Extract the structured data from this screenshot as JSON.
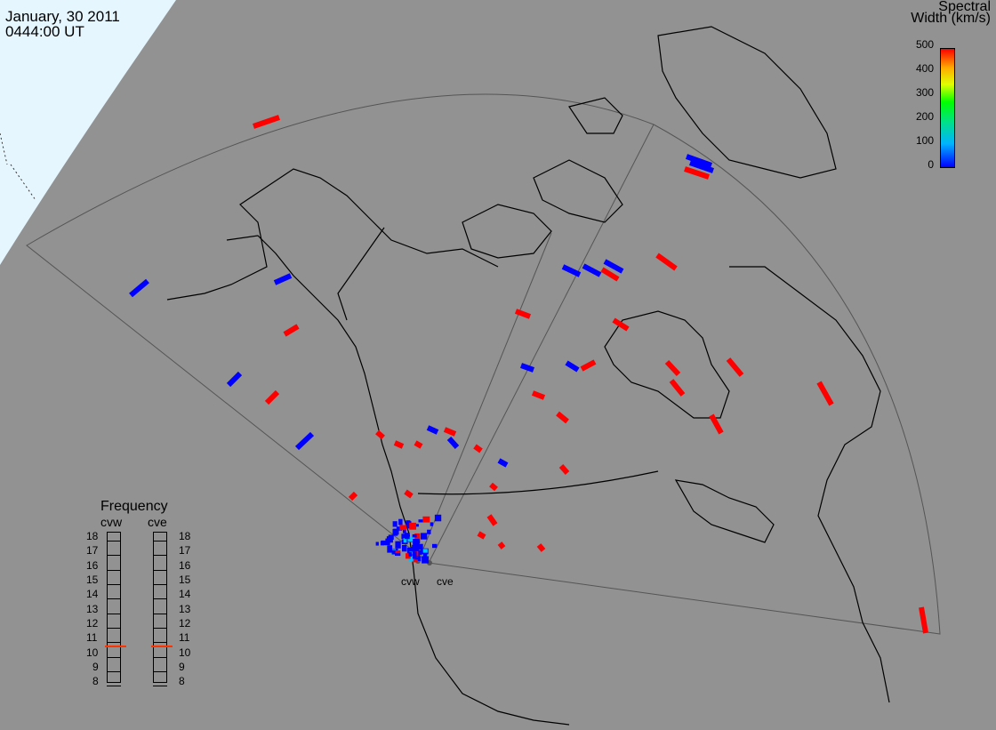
{
  "header": {
    "date": "January, 30 2011",
    "time": "0444:00 UT"
  },
  "colorbar": {
    "title_line1": "Spectral",
    "title_line2": "Width (km/s)",
    "ticks": [
      "500",
      "400",
      "300",
      "200",
      "100",
      "0"
    ]
  },
  "frequency_panel": {
    "title": "Frequency",
    "radar_left": "cvw",
    "radar_right": "cve",
    "ticks": [
      "18",
      "17",
      "16",
      "15",
      "14",
      "13",
      "12",
      "11",
      "10",
      "9",
      "8"
    ],
    "left_value_mhz": 10.8,
    "right_value_mhz": 10.8
  },
  "sites": {
    "west": "cvw",
    "east": "cve"
  },
  "colors": {
    "background": "#929292",
    "daylight": "#e6f6ff",
    "low_width": "#0000ff",
    "high_width": "#ff0000"
  }
}
